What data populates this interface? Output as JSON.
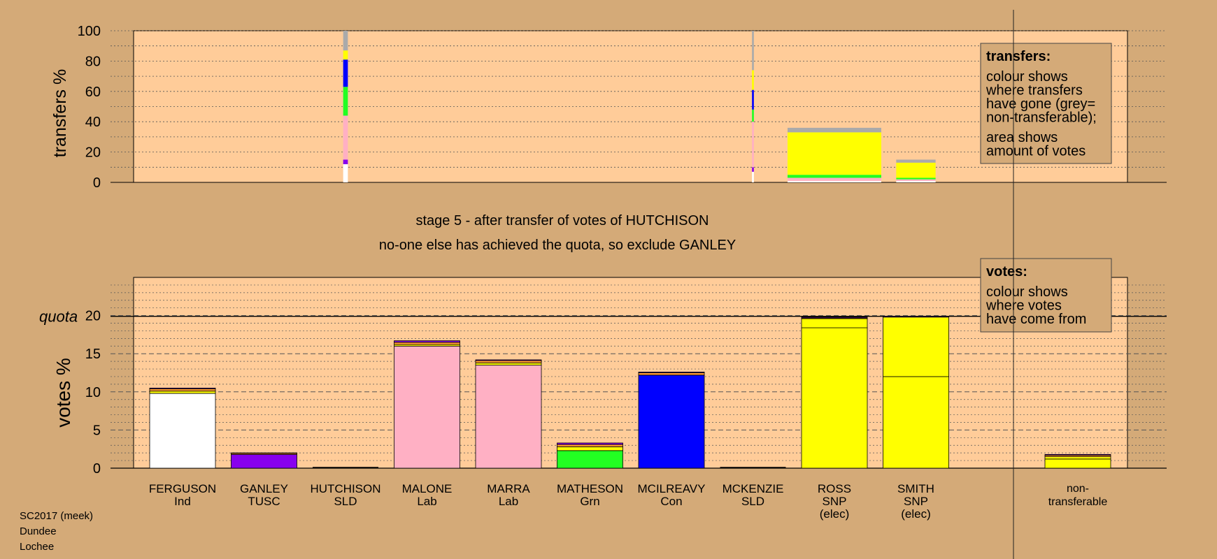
{
  "colors": {
    "background": "#d4aa78",
    "plot_panel": "#ffcc99",
    "grey_non_transferable": "#aaaaaa",
    "Ind": "#ffffff",
    "TUSC": "#8800ee",
    "SLD": "#ff9933",
    "Lab": "#ffb0c4",
    "Grn": "#22ff22",
    "Con": "#0000ff",
    "SNP": "#ffff00"
  },
  "titles": {
    "stage": "stage 5 - after transfer of votes of HUTCHISON",
    "action": "no-one else has achieved the quota, so exclude GANLEY"
  },
  "legends": {
    "transfers": {
      "heading": "transfers:",
      "lines1": [
        "colour shows",
        "where transfers",
        "have gone (grey=",
        "non-transferable);"
      ],
      "lines2": [
        "area shows",
        "amount of votes"
      ]
    },
    "votes": {
      "heading": "votes:",
      "lines1": [
        "colour shows",
        "where votes",
        "have come from"
      ]
    }
  },
  "source_note": [
    "SC2017 (meek)",
    "Dundee",
    "Lochee"
  ],
  "candidates": [
    {
      "name": "FERGUSON",
      "party": "Ind"
    },
    {
      "name": "GANLEY",
      "party": "TUSC"
    },
    {
      "name": "HUTCHISON",
      "party": "SLD"
    },
    {
      "name": "MALONE",
      "party": "Lab"
    },
    {
      "name": "MARRA",
      "party": "Lab"
    },
    {
      "name": "MATHESON",
      "party": "Grn"
    },
    {
      "name": "MCILREAVY",
      "party": "Con"
    },
    {
      "name": "MCKENZIE",
      "party": "SLD"
    },
    {
      "name": "ROSS",
      "party": "SNP",
      "status": "(elec)"
    },
    {
      "name": "SMITH",
      "party": "SNP",
      "status": "(elec)"
    }
  ],
  "non_transferable_label": [
    "non-",
    "transferable"
  ],
  "chart_data": [
    {
      "type": "bar",
      "name": "transfers",
      "ylabel": "transfers %",
      "ylim": [
        0,
        100
      ],
      "yticks": [
        0,
        20,
        40,
        60,
        80,
        100
      ],
      "grid": true,
      "bars": [
        {
          "candidate": "HUTCHISON",
          "width_share": 0.05,
          "segments": [
            {
              "to": "Ind",
              "from": 0,
              "to_value": 12
            },
            {
              "to": "TUSC",
              "from": 12,
              "to_value": 15
            },
            {
              "to": "Lab",
              "from": 15,
              "to_value": 44
            },
            {
              "to": "Grn",
              "from": 44,
              "to_value": 63
            },
            {
              "to": "Con",
              "from": 63,
              "to_value": 81
            },
            {
              "to": "SNP",
              "from": 81,
              "to_value": 87
            },
            {
              "to": "grey_non_transferable",
              "from": 87,
              "to_value": 100
            }
          ]
        },
        {
          "candidate": "MCKENZIE",
          "width_share": 0.02,
          "segments": [
            {
              "to": "Ind",
              "from": 0,
              "to_value": 7
            },
            {
              "to": "TUSC",
              "from": 7,
              "to_value": 10
            },
            {
              "to": "Lab",
              "from": 10,
              "to_value": 40
            },
            {
              "to": "Grn",
              "from": 40,
              "to_value": 48
            },
            {
              "to": "Con",
              "from": 48,
              "to_value": 61
            },
            {
              "to": "SNP",
              "from": 61,
              "to_value": 74
            },
            {
              "to": "grey_non_transferable",
              "from": 74,
              "to_value": 100
            }
          ]
        },
        {
          "candidate": "ROSS",
          "width_share": 1.0,
          "segments": [
            {
              "to": "Ind",
              "from": 0,
              "to_value": 1
            },
            {
              "to": "Lab",
              "from": 1,
              "to_value": 3
            },
            {
              "to": "Grn",
              "from": 3,
              "to_value": 5
            },
            {
              "to": "SNP",
              "from": 5,
              "to_value": 33
            },
            {
              "to": "grey_non_transferable",
              "from": 33,
              "to_value": 36
            }
          ]
        },
        {
          "candidate": "SMITH",
          "width_share": 0.42,
          "segments": [
            {
              "to": "Ind",
              "from": 0,
              "to_value": 1
            },
            {
              "to": "Lab",
              "from": 1,
              "to_value": 2
            },
            {
              "to": "Grn",
              "from": 2,
              "to_value": 3
            },
            {
              "to": "SNP",
              "from": 3,
              "to_value": 13
            },
            {
              "to": "grey_non_transferable",
              "from": 13,
              "to_value": 15
            }
          ]
        }
      ]
    },
    {
      "type": "bar",
      "name": "votes",
      "ylabel": "votes %",
      "ylim": [
        0,
        25
      ],
      "yticks": [
        0,
        5,
        10,
        15,
        20
      ],
      "quota": 19.9,
      "quota_label": "quota",
      "grid": true,
      "bars": [
        {
          "candidate": "FERGUSON",
          "segments": [
            {
              "source": "Ind",
              "value": 9.8
            },
            {
              "source": "SNP",
              "value": 0.3
            },
            {
              "source": "SLD",
              "value": 0.3
            },
            {
              "source": "TUSC",
              "value": 0.1
            }
          ]
        },
        {
          "candidate": "GANLEY",
          "segments": [
            {
              "source": "TUSC",
              "value": 1.8
            },
            {
              "source": "SLD",
              "value": 0.15
            },
            {
              "source": "SNP",
              "value": 0.05
            }
          ]
        },
        {
          "candidate": "HUTCHISON",
          "segments": []
        },
        {
          "candidate": "MALONE",
          "segments": [
            {
              "source": "Lab",
              "value": 16.0
            },
            {
              "source": "SNP",
              "value": 0.2
            },
            {
              "source": "SLD",
              "value": 0.3
            },
            {
              "source": "TUSC",
              "value": 0.2
            }
          ]
        },
        {
          "candidate": "MARRA",
          "segments": [
            {
              "source": "Lab",
              "value": 13.5
            },
            {
              "source": "SNP",
              "value": 0.3
            },
            {
              "source": "SLD",
              "value": 0.3
            },
            {
              "source": "TUSC",
              "value": 0.1
            }
          ]
        },
        {
          "candidate": "MATHESON",
          "segments": [
            {
              "source": "Grn",
              "value": 2.3
            },
            {
              "source": "SNP",
              "value": 0.5
            },
            {
              "source": "SLD",
              "value": 0.3
            },
            {
              "source": "TUSC",
              "value": 0.2
            }
          ]
        },
        {
          "candidate": "MCILREAVY",
          "segments": [
            {
              "source": "Con",
              "value": 12.2
            },
            {
              "source": "SLD",
              "value": 0.3
            },
            {
              "source": "TUSC",
              "value": 0.1
            }
          ]
        },
        {
          "candidate": "MCKENZIE",
          "segments": []
        },
        {
          "candidate": "ROSS",
          "segments": [
            {
              "source": "SNP",
              "value": 18.4
            },
            {
              "source": "SNP",
              "value": 1.2
            },
            {
              "source": "SLD",
              "value": 0.1
            },
            {
              "source": "TUSC",
              "value": 0.1
            }
          ]
        },
        {
          "candidate": "SMITH",
          "segments": [
            {
              "source": "SNP",
              "value": 12.0
            },
            {
              "source": "SNP",
              "value": 7.8
            },
            {
              "source": "TUSC",
              "value": 0.1
            }
          ]
        },
        {
          "candidate": "non-transferable",
          "segments": [
            {
              "source": "SNP",
              "value": 1.2
            },
            {
              "source": "SNP",
              "value": 0.3
            },
            {
              "source": "SLD",
              "value": 0.2
            },
            {
              "source": "TUSC",
              "value": 0.1
            }
          ]
        }
      ]
    }
  ]
}
